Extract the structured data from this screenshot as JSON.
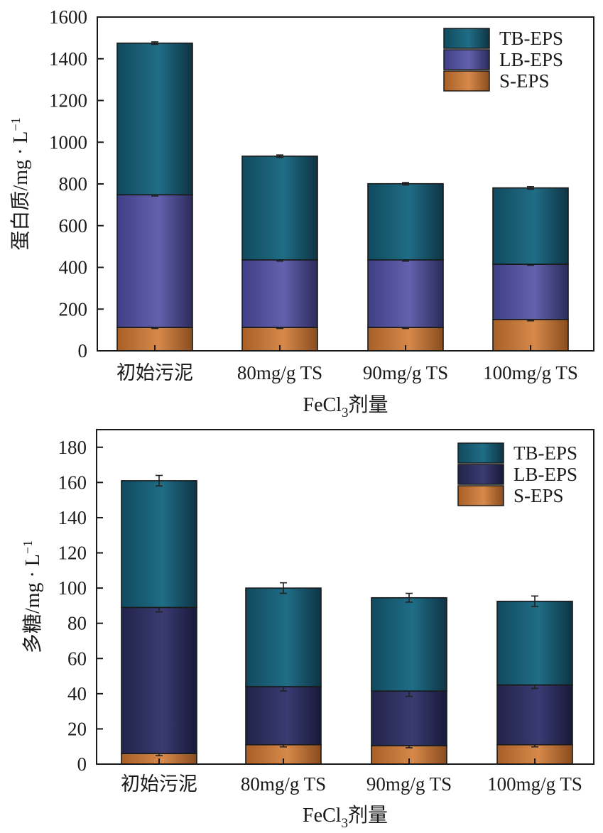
{
  "colors": {
    "tb": "#1f6d86",
    "lb_top": "#5b5aa8",
    "lb_bottom": "#2e2f5e",
    "s": "#c87b3c",
    "axis": "#1a1a1a",
    "error": "#222222"
  },
  "chart_data": [
    {
      "type": "bar",
      "stacked": true,
      "categories": [
        "初始污泥",
        "80mg/g TS",
        "90mg/g TS",
        "100mg/g TS"
      ],
      "series": [
        {
          "name": "S-EPS",
          "values": [
            112,
            112,
            112,
            150
          ],
          "errors": [
            5,
            5,
            5,
            6
          ]
        },
        {
          "name": "LB-EPS",
          "values": [
            636,
            324,
            324,
            265
          ],
          "errors": [
            6,
            6,
            6,
            5
          ]
        },
        {
          "name": "TB-EPS",
          "values": [
            727,
            497,
            365,
            366
          ],
          "errors": [
            6,
            6,
            6,
            6
          ]
        }
      ],
      "title": "",
      "xlabel_main": "FeCl",
      "xlabel_sub": "3",
      "xlabel_suffix": "剂量",
      "ylabel_main": "蛋白质/mg · L",
      "ylabel_sup": "−1",
      "ylim": [
        0,
        1600
      ],
      "yticks": [
        0,
        200,
        400,
        600,
        800,
        1000,
        1200,
        1400,
        1600
      ],
      "legend_position": "top-right",
      "legend": [
        "TB-EPS",
        "LB-EPS",
        "S-EPS"
      ]
    },
    {
      "type": "bar",
      "stacked": true,
      "categories": [
        "初始污泥",
        "80mg/g TS",
        "90mg/g TS",
        "100mg/g TS"
      ],
      "series": [
        {
          "name": "S-EPS",
          "values": [
            6,
            11,
            10.5,
            11
          ],
          "errors": [
            1.2,
            1.2,
            1.2,
            1.2
          ]
        },
        {
          "name": "LB-EPS",
          "values": [
            83,
            33,
            31,
            34
          ],
          "errors": [
            2.5,
            2.5,
            3,
            2
          ]
        },
        {
          "name": "TB-EPS",
          "values": [
            72,
            56,
            53,
            47.5
          ],
          "errors": [
            3,
            3,
            2.5,
            3
          ]
        }
      ],
      "title": "",
      "xlabel_main": "FeCl",
      "xlabel_sub": "3",
      "xlabel_suffix": "剂量",
      "ylabel_main": "多糖/mg · L",
      "ylabel_sup": "−1",
      "ylim": [
        0,
        190
      ],
      "yticks": [
        0,
        20,
        40,
        60,
        80,
        100,
        120,
        140,
        160,
        180
      ],
      "legend_position": "top-right",
      "legend": [
        "TB-EPS",
        "LB-EPS",
        "S-EPS"
      ]
    }
  ]
}
